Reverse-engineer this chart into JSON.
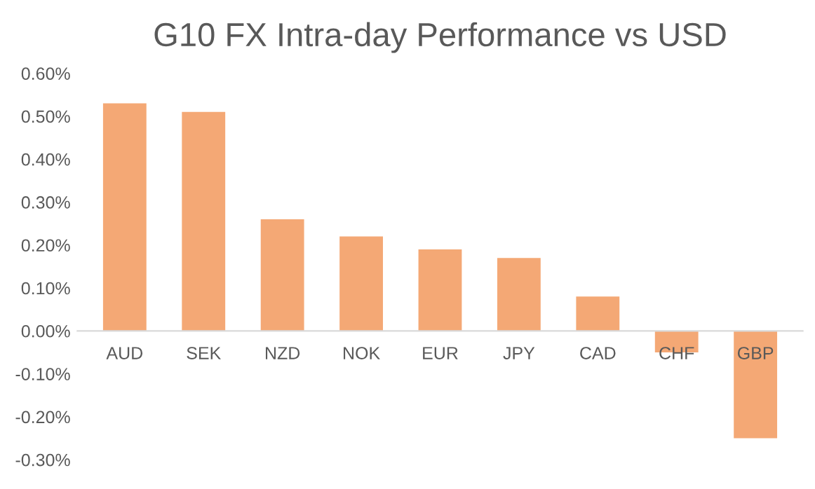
{
  "chart_data": {
    "type": "bar",
    "title": "G10 FX Intra-day Performance vs USD",
    "categories": [
      "AUD",
      "SEK",
      "NZD",
      "NOK",
      "EUR",
      "JPY",
      "CAD",
      "CHF",
      "GBP"
    ],
    "values": [
      0.53,
      0.51,
      0.26,
      0.22,
      0.19,
      0.17,
      0.08,
      -0.05,
      -0.25
    ],
    "color": "#f4a875",
    "ylim": [
      -0.3,
      0.6
    ],
    "yticks": [
      {
        "value": -0.3,
        "label": "-0.30%"
      },
      {
        "value": -0.2,
        "label": "-0.20%"
      },
      {
        "value": -0.1,
        "label": "-0.10%"
      },
      {
        "value": 0,
        "label": "0.00%"
      },
      {
        "value": 0.1,
        "label": "0.10%"
      },
      {
        "value": 0.2,
        "label": "0.20%"
      },
      {
        "value": 0.3,
        "label": "0.30%"
      },
      {
        "value": 0.4,
        "label": "0.40%"
      },
      {
        "value": 0.5,
        "label": "0.50%"
      },
      {
        "value": 0.6,
        "label": "0.60%"
      }
    ],
    "grid": false
  }
}
